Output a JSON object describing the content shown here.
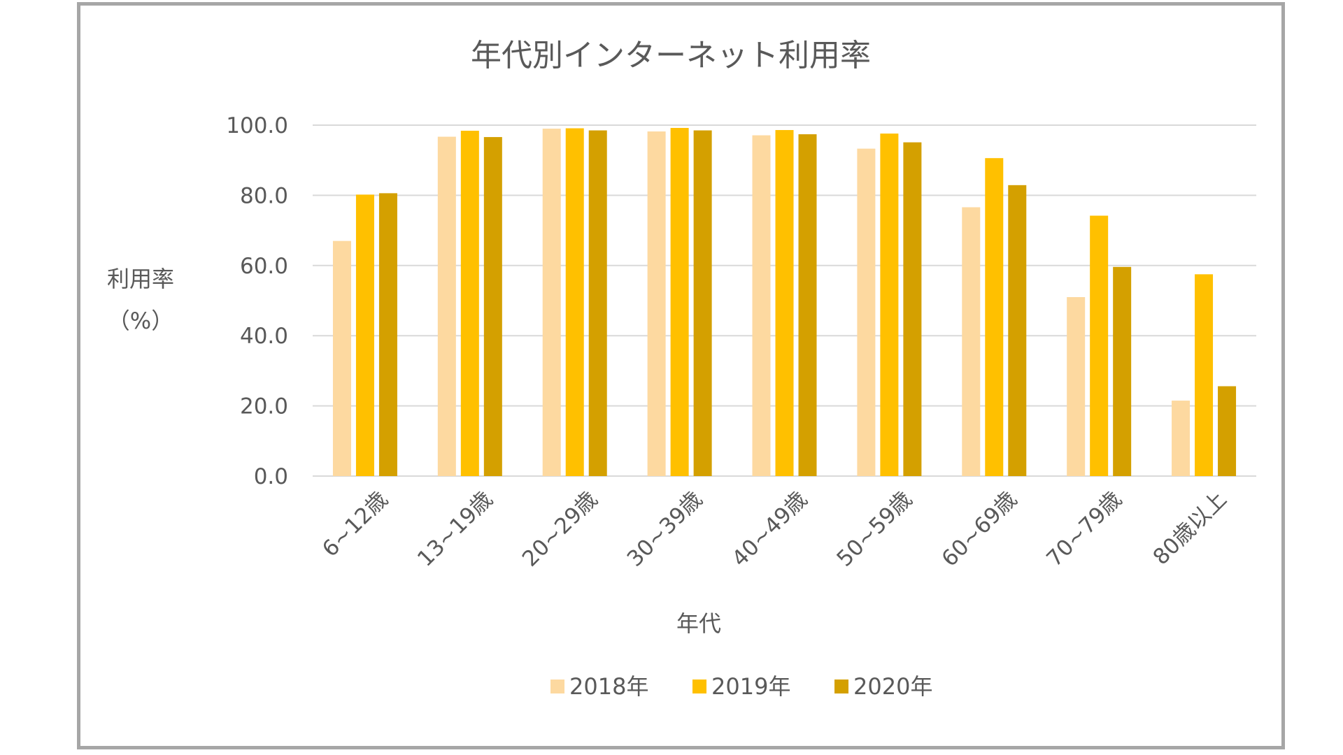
{
  "chart_data": {
    "type": "bar",
    "title": "年代別インターネット利用率",
    "xlabel": "年代",
    "ylabel": [
      "利用率",
      "（%）"
    ],
    "ylim": [
      0,
      100
    ],
    "yticks": [
      "0.0",
      "20.0",
      "40.0",
      "60.0",
      "80.0",
      "100.0"
    ],
    "grid": true,
    "legend_position": "bottom",
    "categories": [
      "6~12歳",
      "13~19歳",
      "20~29歳",
      "30~39歳",
      "40~49歳",
      "50~59歳",
      "60~69歳",
      "70~79歳",
      "80歳以上"
    ],
    "series": [
      {
        "name": "2018年",
        "color": "#fdd9a0",
        "values": [
          67.0,
          96.7,
          99.0,
          98.2,
          97.1,
          93.3,
          76.6,
          51.0,
          21.5
        ]
      },
      {
        "name": "2019年",
        "color": "#ffc000",
        "values": [
          80.2,
          98.4,
          99.1,
          99.2,
          98.6,
          97.6,
          90.6,
          74.2,
          57.5
        ]
      },
      {
        "name": "2020年",
        "color": "#d4a000",
        "values": [
          80.6,
          96.6,
          98.5,
          98.5,
          97.4,
          95.1,
          82.9,
          59.6,
          25.6
        ]
      }
    ]
  }
}
